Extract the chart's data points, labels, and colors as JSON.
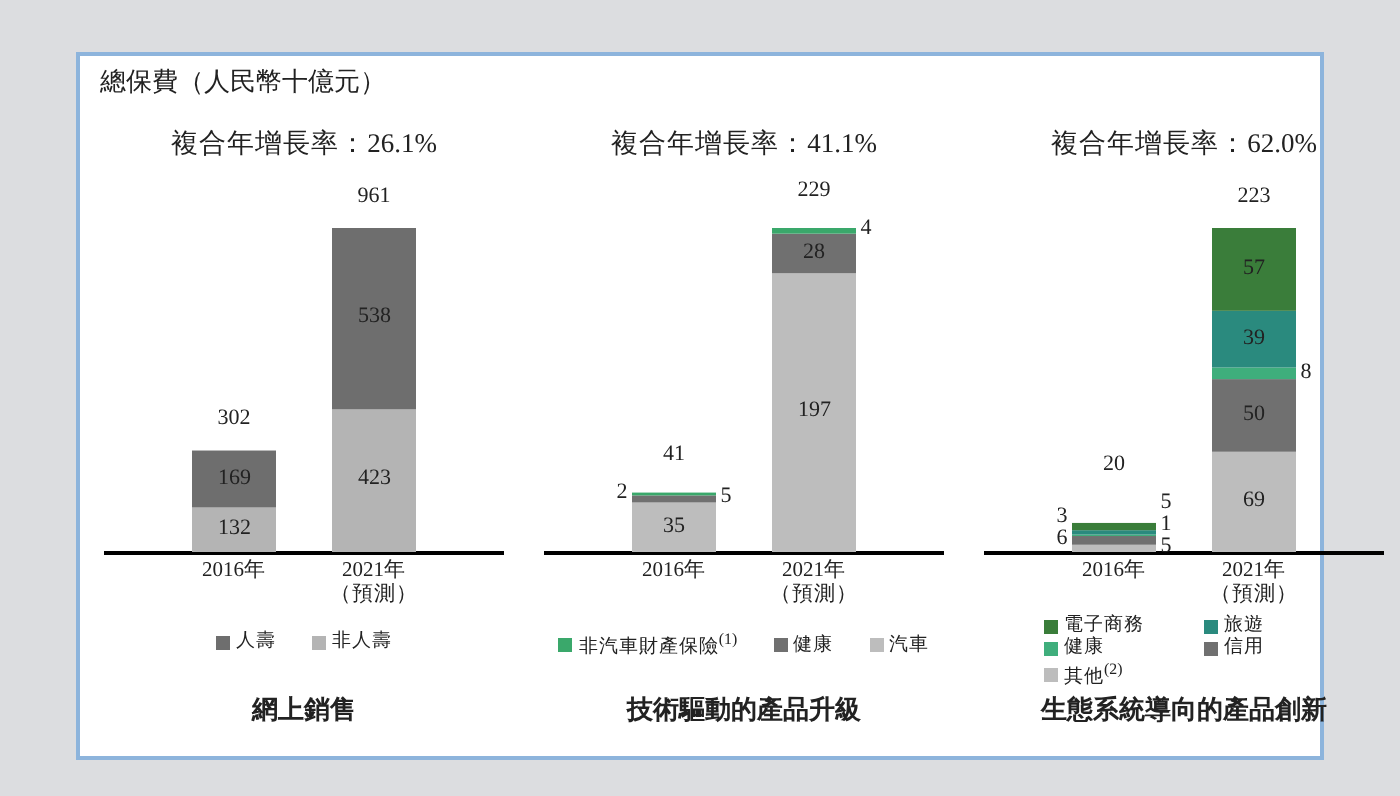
{
  "chart_data": [
    {
      "type": "bar",
      "stacked": true,
      "ylabel": "總保費（人民幣十億元）",
      "subtitle": "複合年增長率：26.1%",
      "title": "網上銷售",
      "categories": [
        "2016年",
        "2021年（預測）"
      ],
      "series": [
        {
          "name": "非人壽",
          "color": "#b4b4b4",
          "values": [
            132,
            423
          ]
        },
        {
          "name": "人壽",
          "color": "#6e6e6e",
          "values": [
            169,
            538
          ]
        }
      ],
      "totals": [
        "302",
        "961"
      ],
      "data_labels": true,
      "legend": "bottom"
    },
    {
      "type": "bar",
      "stacked": true,
      "subtitle": "複合年增長率：41.1%",
      "title": "技術驅動的產品升級",
      "categories": [
        "2016年",
        "2021年（預測）"
      ],
      "series": [
        {
          "name": "汽車",
          "color": "#bdbdbd",
          "values": [
            35,
            197
          ]
        },
        {
          "name": "健康",
          "color": "#707070",
          "values": [
            5,
            28
          ]
        },
        {
          "name": "非汽車財產保險$^{(1)}$",
          "color": "#3aa86b",
          "values": [
            2,
            4
          ]
        }
      ],
      "totals": [
        "41",
        "229"
      ],
      "data_labels": true,
      "legend": "bottom"
    },
    {
      "type": "bar",
      "stacked": true,
      "subtitle": "複合年增長率：62.0%",
      "title": "生態系統導向的產品創新",
      "categories": [
        "2016年",
        "2021年（預測）"
      ],
      "series": [
        {
          "name": "其他$^{(2)}$",
          "color": "#bdbdbd",
          "values": [
            5,
            69
          ]
        },
        {
          "name": "信用",
          "color": "#707070",
          "values": [
            6,
            50
          ]
        },
        {
          "name": "健康",
          "color": "#3fae7c",
          "values": [
            1,
            8
          ]
        },
        {
          "name": "旅遊",
          "color": "#2a8a7e",
          "values": [
            3,
            39
          ]
        },
        {
          "name": "電子商務",
          "color": "#3a7d3a",
          "values": [
            5,
            57
          ]
        }
      ],
      "totals": [
        "20",
        "223"
      ],
      "data_labels": true,
      "legend": "bottom"
    }
  ]
}
